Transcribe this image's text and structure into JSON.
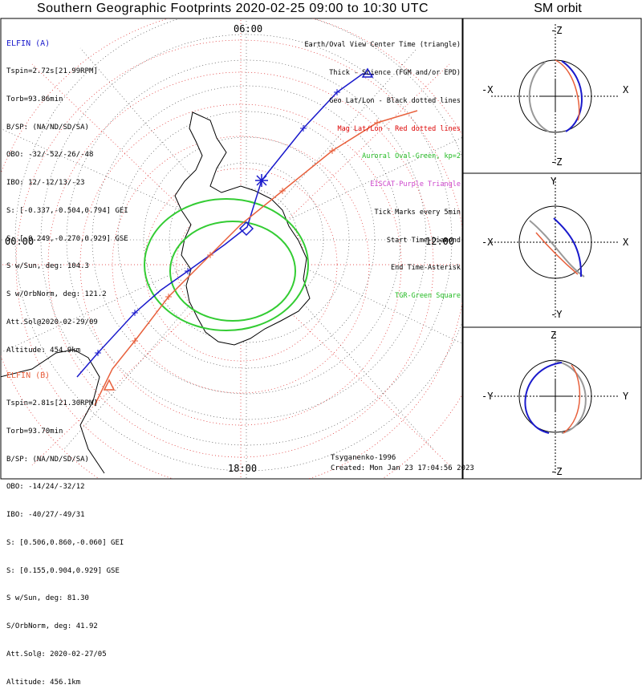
{
  "title": "Southern Geographic Footprints 2020-02-25 09:00 to 10:30 UTC",
  "orbit_title": "SM orbit",
  "map": {
    "time_labels": {
      "top": "06:00",
      "left": "00:00",
      "right": "12:00",
      "bottom": "18:00"
    }
  },
  "elfin_a": {
    "header": "ELFIN (A)",
    "lines": [
      "Tspin=2.72s[21.99RPM]",
      "Torb=93.86min",
      "B/SP: (NA/ND/SD/SA)",
      "OBO: -32/-52/-26/-48",
      "IBO: 12/-12/13/-23",
      "S: [-0.337,-0.504,0.794] GEI",
      "S: [-0.249,-0.270,0.929] GSE",
      "S w/Sun, deg: 104.3",
      "S w/OrbNorm, deg: 121.2",
      "Att.Sol@2020-02-29/09",
      "Altitude: 454.9km"
    ],
    "color": "#1a1acc"
  },
  "elfin_b": {
    "header": "ELFIN (B)",
    "lines": [
      "Tspin=2.81s[21.30RPM]",
      "Torb=93.70min",
      "B/SP: (NA/ND/SD/SA)",
      "OBO: -14/24/-32/12",
      "IBO: -40/27/-49/31",
      "S: [0.506,0.860,-0.060] GEI",
      "S: [0.155,0.904,0.929] GSE",
      "S w/Sun, deg: 81.30",
      "S/OrbNorm, deg: 41.92",
      "Att.Sol@: 2020-02-27/05",
      "Altitude: 456.1km"
    ],
    "color": "#e8603c"
  },
  "legend": [
    {
      "text": "Earth/Oval View Center Time (triangle)",
      "color": "#000000"
    },
    {
      "text": "Thick - Science (FGM and/or EPD)",
      "color": "#000000"
    },
    {
      "text": "Geo Lat/Lon - Black dotted lines",
      "color": "#000000"
    },
    {
      "text": "Mag Lat/Lon - Red dotted lines",
      "color": "#dd0000"
    },
    {
      "text": "Auroral Oval-Green, kp=2",
      "color": "#22bb22"
    },
    {
      "text": "EISCAT-Purple Triangle",
      "color": "#cc44cc"
    },
    {
      "text": "Tick Marks every 5min",
      "color": "#000000"
    },
    {
      "text": "Start Time-Diamond",
      "color": "#000000"
    },
    {
      "text": "End Time-Asterisk",
      "color": "#000000"
    },
    {
      "text": "TGR-Green Square",
      "color": "#22bb22"
    }
  ],
  "model": "Tsyganenko-1996",
  "created": "Created: Mon Jan 23 17:04:56 2023",
  "panels": [
    {
      "top": "-Z",
      "bottom": "-Z",
      "left": "-X",
      "right": "X"
    },
    {
      "top": "Y",
      "bottom": "-Y",
      "left": "-X",
      "right": "X"
    },
    {
      "top": "Z",
      "bottom": "-Z",
      "left": "-Y",
      "right": "Y"
    }
  ]
}
